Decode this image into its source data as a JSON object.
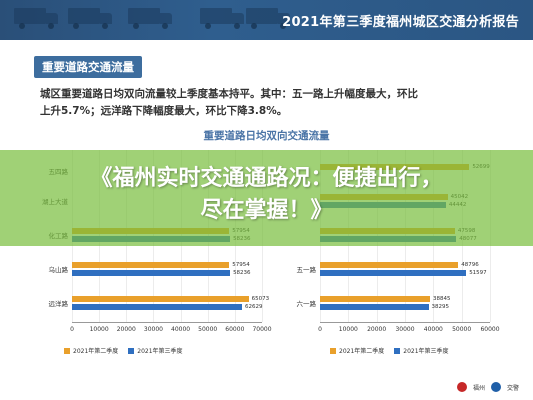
{
  "header": {
    "title": "2021年第三季度福州城区交通分析报告"
  },
  "section": {
    "tag": "重要道路交通流量",
    "summary_line1": "城区重要道路日均双向流量较上季度基本持平。其中：五一路上升幅度最大，环比",
    "summary_line2": "上升5.7%；远洋路下降幅度最大，环比下降3.8%。",
    "chart_title": "重要道路日均双向交通流量"
  },
  "overlay": {
    "headline_line1": "《福州实时交通通路况：便捷出行，",
    "headline_line2": "尽在掌握！》"
  },
  "legend": {
    "q2": "2021年第二季度",
    "q3": "2021年第三季度"
  },
  "colors": {
    "q2": "#e9a02b",
    "q3": "#2f6fc0",
    "overlay": "#78be3c"
  },
  "footer": {
    "logo1": "福州",
    "logo2": "交警"
  },
  "chart_data": [
    {
      "type": "bar",
      "orientation": "horizontal",
      "categories": [
        "五四路",
        "湖上大道",
        "化工路",
        "乌山路",
        "远洋路"
      ],
      "series": [
        {
          "name": "2021年第二季度",
          "values": [
            null,
            null,
            57954,
            57954,
            65073
          ]
        },
        {
          "name": "2021年第三季度",
          "values": [
            null,
            null,
            58236,
            58236,
            62629
          ]
        }
      ],
      "x_ticks": [
        "0",
        "10000",
        "20000",
        "30000",
        "40000",
        "50000",
        "60000",
        "70000"
      ],
      "xlim": [
        0,
        70000
      ]
    },
    {
      "type": "bar",
      "orientation": "horizontal",
      "categories": [
        "",
        "",
        "",
        "五一路",
        "六一路"
      ],
      "series": [
        {
          "name": "2021年第二季度",
          "values": [
            52699,
            45042,
            47598,
            48796,
            38845
          ]
        },
        {
          "name": "2021年第三季度",
          "values": [
            null,
            44442,
            48077,
            51597,
            38295
          ]
        }
      ],
      "x_ticks": [
        "0",
        "10000",
        "20000",
        "30000",
        "40000",
        "50000",
        "60000"
      ],
      "xlim": [
        0,
        60000
      ]
    }
  ]
}
